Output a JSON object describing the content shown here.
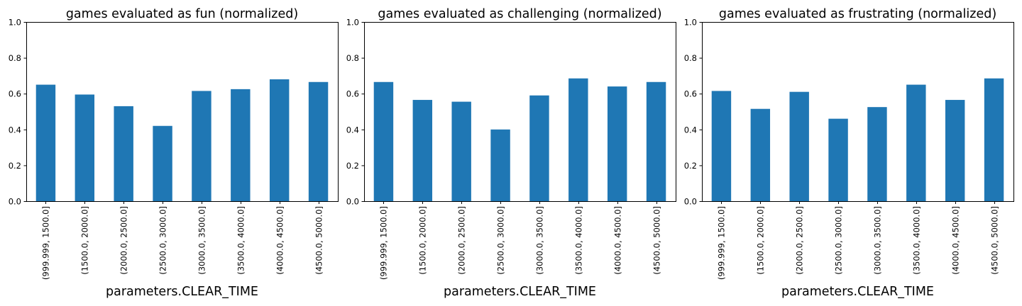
{
  "chart_data": [
    {
      "type": "bar",
      "title": "games evaluated as fun (normalized)",
      "xlabel": "parameters.CLEAR_TIME",
      "ylabel": "",
      "ylim": [
        0,
        1.0
      ],
      "yticks": [
        "0.0",
        "0.2",
        "0.4",
        "0.6",
        "0.8",
        "1.0"
      ],
      "categories": [
        "(999.999, 1500.0]",
        "(1500.0, 2000.0]",
        "(2000.0, 2500.0]",
        "(2500.0, 3000.0]",
        "(3000.0, 3500.0]",
        "(3500.0, 4000.0]",
        "(4000.0, 4500.0]",
        "(4500.0, 5000.0]"
      ],
      "values": [
        0.65,
        0.595,
        0.53,
        0.42,
        0.615,
        0.625,
        0.68,
        0.665
      ],
      "color": "#1f77b4",
      "grid": false,
      "legend": "none"
    },
    {
      "type": "bar",
      "title": "games evaluated as challenging (normalized)",
      "xlabel": "parameters.CLEAR_TIME",
      "ylabel": "",
      "ylim": [
        0,
        1.0
      ],
      "yticks": [
        "0.0",
        "0.2",
        "0.4",
        "0.6",
        "0.8",
        "1.0"
      ],
      "categories": [
        "(999.999, 1500.0]",
        "(1500.0, 2000.0]",
        "(2000.0, 2500.0]",
        "(2500.0, 3000.0]",
        "(3000.0, 3500.0]",
        "(3500.0, 4000.0]",
        "(4000.0, 4500.0]",
        "(4500.0, 5000.0]"
      ],
      "values": [
        0.665,
        0.565,
        0.555,
        0.4,
        0.59,
        0.685,
        0.64,
        0.665
      ],
      "color": "#1f77b4",
      "grid": false,
      "legend": "none"
    },
    {
      "type": "bar",
      "title": "games evaluated as frustrating (normalized)",
      "xlabel": "parameters.CLEAR_TIME",
      "ylabel": "",
      "ylim": [
        0,
        1.0
      ],
      "yticks": [
        "0.0",
        "0.2",
        "0.4",
        "0.6",
        "0.8",
        "1.0"
      ],
      "categories": [
        "(999.999, 1500.0]",
        "(1500.0, 2000.0]",
        "(2000.0, 2500.0]",
        "(2500.0, 3000.0]",
        "(3000.0, 3500.0]",
        "(3500.0, 4000.0]",
        "(4000.0, 4500.0]",
        "(4500.0, 5000.0]"
      ],
      "values": [
        0.615,
        0.515,
        0.61,
        0.46,
        0.525,
        0.65,
        0.565,
        0.685
      ],
      "color": "#1f77b4",
      "grid": false,
      "legend": "none"
    }
  ]
}
